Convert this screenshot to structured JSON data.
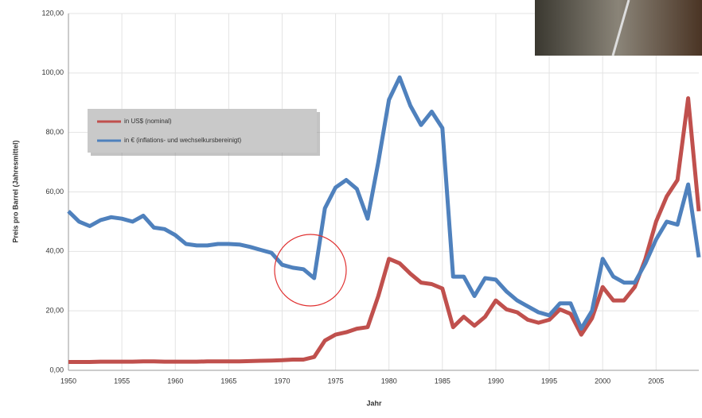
{
  "chart_data": {
    "type": "line",
    "x": [
      1950,
      1951,
      1952,
      1953,
      1954,
      1955,
      1956,
      1957,
      1958,
      1959,
      1960,
      1961,
      1962,
      1963,
      1964,
      1965,
      1966,
      1967,
      1968,
      1969,
      1970,
      1971,
      1972,
      1973,
      1974,
      1975,
      1976,
      1977,
      1978,
      1979,
      1980,
      1981,
      1982,
      1983,
      1984,
      1985,
      1986,
      1987,
      1988,
      1989,
      1990,
      1991,
      1992,
      1993,
      1994,
      1995,
      1996,
      1997,
      1998,
      1999,
      2000,
      2001,
      2002,
      2003,
      2004,
      2005,
      2006,
      2007,
      2008,
      2009
    ],
    "series": [
      {
        "name": "in US$ (nominal)",
        "color": "#c0504d",
        "values": [
          2.8,
          2.8,
          2.8,
          2.9,
          2.9,
          2.9,
          2.9,
          3.0,
          3.0,
          2.9,
          2.9,
          2.9,
          2.9,
          3.0,
          3.0,
          3.0,
          3.0,
          3.1,
          3.2,
          3.3,
          3.4,
          3.6,
          3.6,
          4.5,
          10,
          12,
          12.8,
          14,
          14.5,
          25,
          37.5,
          36,
          32.5,
          29.5,
          29,
          27.5,
          14.5,
          18,
          15,
          18,
          23.5,
          20.5,
          19.5,
          17,
          16,
          17,
          20.5,
          19,
          12,
          17.5,
          28,
          23.5,
          23.5,
          28,
          37.5,
          50,
          58.5,
          64,
          91.5,
          53.5
        ]
      },
      {
        "name": "in € (inflations- und wechselkursbereinigt)",
        "color": "#4f81bd",
        "values": [
          53.5,
          50,
          48.5,
          50.5,
          51.5,
          51,
          50,
          52,
          48,
          47.5,
          45.5,
          42.5,
          42,
          42,
          42.5,
          42.5,
          42.3,
          41.5,
          40.5,
          39.5,
          35.5,
          34.5,
          34,
          31,
          54.5,
          61.5,
          64,
          61,
          51,
          70,
          91,
          98.5,
          89,
          82.5,
          87,
          81.5,
          31.5,
          31.5,
          25,
          31,
          30.5,
          26.5,
          23.5,
          21.5,
          19.5,
          18.5,
          22.5,
          22.5,
          14,
          20,
          37.5,
          31.5,
          29.5,
          29.5,
          36,
          44,
          50,
          49,
          62.5,
          38
        ]
      }
    ],
    "xlim": [
      1950,
      2009
    ],
    "xticks": [
      1950,
      1955,
      1960,
      1965,
      1970,
      1975,
      1980,
      1985,
      1990,
      1995,
      2000,
      2005
    ],
    "ylim": [
      0,
      120
    ],
    "yticks": [
      {
        "value": 0,
        "label": "0,00"
      },
      {
        "value": 20,
        "label": "20,00"
      },
      {
        "value": 40,
        "label": "40,00"
      },
      {
        "value": 60,
        "label": "60,00"
      },
      {
        "value": 80,
        "label": "80,00"
      },
      {
        "value": 100,
        "label": "100,00"
      },
      {
        "value": 120,
        "label": "120,00"
      }
    ],
    "x_label": "Jahr",
    "y_label": "Preis pro Barrel (Jahresmittel)",
    "grid": true,
    "legend": "upper left"
  }
}
